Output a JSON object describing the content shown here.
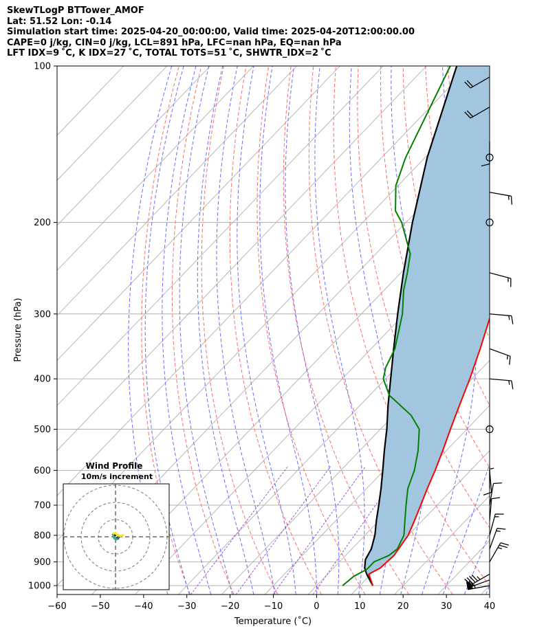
{
  "header": {
    "lines": [
      "SkewTLogP BTTower_AMOF",
      "Lat: 51.52   Lon: -0.14",
      "Simulation start time: 2025-04-20_00:00:00, Valid time: 2025-04-20T12:00:00.00",
      "CAPE=0 j/kg, CIN=0 j/kg, LCL=891 hPa, LFC=nan hPa, EQ=nan hPa",
      "LFT IDX=9 ˚C, K IDX=27 ˚C, TOTAL TOTS=51 ˚C, SHWTR_IDX=2 ˚C"
    ]
  },
  "chart_data": {
    "type": "skewt",
    "xlabel": "Temperature (˚C)",
    "ylabel": "Pressure (hPa)",
    "xlim": [
      -60,
      40
    ],
    "ylim": [
      1040,
      100
    ],
    "x_ticks": [
      -60,
      -50,
      -40,
      -30,
      -20,
      -10,
      0,
      10,
      20,
      30,
      40
    ],
    "y_ticks": [
      100,
      200,
      300,
      400,
      500,
      600,
      700,
      800,
      900,
      1000
    ],
    "grid": true,
    "colors": {
      "temperature": "#ff0000",
      "dewpoint": "#008000",
      "parcel": "#000000",
      "fill": "#a2c6e0",
      "dry_adiabats": "#ff6b6b",
      "moist_adiabats": "#6b6bff",
      "mixing_ratio": "#9b3fd0",
      "isotherms": "#b0b0b0"
    },
    "temperature_profile": [
      {
        "p": 1000,
        "t": 13.0
      },
      {
        "p": 950,
        "t": 9.5
      },
      {
        "p": 925,
        "t": 10.8
      },
      {
        "p": 875,
        "t": 11.2
      },
      {
        "p": 850,
        "t": 10.8
      },
      {
        "p": 800,
        "t": 10.0
      },
      {
        "p": 750,
        "t": 8.2
      },
      {
        "p": 700,
        "t": 6.2
      },
      {
        "p": 650,
        "t": 4.0
      },
      {
        "p": 600,
        "t": 1.8
      },
      {
        "p": 550,
        "t": -0.8
      },
      {
        "p": 500,
        "t": -3.8
      },
      {
        "p": 450,
        "t": -7.0
      },
      {
        "p": 400,
        "t": -10.5
      },
      {
        "p": 350,
        "t": -14.8
      },
      {
        "p": 300,
        "t": -20.0
      },
      {
        "p": 270,
        "t": -24.0
      },
      {
        "p": 250,
        "t": -26.0
      },
      {
        "p": 230,
        "t": -26.0
      },
      {
        "p": 200,
        "t": -24.5
      },
      {
        "p": 185,
        "t": -26.0
      },
      {
        "p": 175,
        "t": -27.8
      },
      {
        "p": 160,
        "t": -31.0
      },
      {
        "p": 145,
        "t": -37.0
      },
      {
        "p": 130,
        "t": -44.5
      },
      {
        "p": 115,
        "t": -52.0
      },
      {
        "p": 100,
        "t": -60.0
      }
    ],
    "dewpoint_profile": [
      {
        "p": 1000,
        "t": 6.0
      },
      {
        "p": 960,
        "t": 6.5
      },
      {
        "p": 930,
        "t": 8.0
      },
      {
        "p": 900,
        "t": 8.0
      },
      {
        "p": 875,
        "t": 10.0
      },
      {
        "p": 850,
        "t": 10.5
      },
      {
        "p": 800,
        "t": 9.0
      },
      {
        "p": 750,
        "t": 6.0
      },
      {
        "p": 700,
        "t": 2.8
      },
      {
        "p": 650,
        "t": -0.5
      },
      {
        "p": 600,
        "t": -3.0
      },
      {
        "p": 550,
        "t": -6.5
      },
      {
        "p": 500,
        "t": -11.0
      },
      {
        "p": 470,
        "t": -16.0
      },
      {
        "p": 430,
        "t": -25.5
      },
      {
        "p": 400,
        "t": -30.5
      },
      {
        "p": 380,
        "t": -32.5
      },
      {
        "p": 350,
        "t": -34.5
      },
      {
        "p": 300,
        "t": -40.5
      },
      {
        "p": 270,
        "t": -45.5
      },
      {
        "p": 250,
        "t": -48.5
      },
      {
        "p": 230,
        "t": -52.0
      },
      {
        "p": 200,
        "t": -61.0
      },
      {
        "p": 190,
        "t": -65.0
      },
      {
        "p": 170,
        "t": -70.5
      },
      {
        "p": 150,
        "t": -74.5
      },
      {
        "p": 120,
        "t": -80.0
      },
      {
        "p": 100,
        "t": -84.5
      }
    ],
    "parcel_profile": [
      {
        "p": 1000,
        "t": 13.0
      },
      {
        "p": 950,
        "t": 9.0
      },
      {
        "p": 925,
        "t": 7.2
      },
      {
        "p": 891,
        "t": 5.5
      },
      {
        "p": 850,
        "t": 4.5
      },
      {
        "p": 800,
        "t": 2.3
      },
      {
        "p": 750,
        "t": -0.6
      },
      {
        "p": 700,
        "t": -3.5
      },
      {
        "p": 650,
        "t": -6.7
      },
      {
        "p": 600,
        "t": -10.3
      },
      {
        "p": 550,
        "t": -14.3
      },
      {
        "p": 500,
        "t": -18.5
      },
      {
        "p": 450,
        "t": -23.5
      },
      {
        "p": 400,
        "t": -28.8
      },
      {
        "p": 350,
        "t": -34.8
      },
      {
        "p": 300,
        "t": -41.6
      },
      {
        "p": 250,
        "t": -49.4
      },
      {
        "p": 200,
        "t": -58.5
      },
      {
        "p": 150,
        "t": -69.5
      },
      {
        "p": 100,
        "t": -83.0
      }
    ],
    "wind_barbs": [
      {
        "p": 1000,
        "speed_kt": 65,
        "dir": 260
      },
      {
        "p": 975,
        "speed_kt": 55,
        "dir": 250
      },
      {
        "p": 950,
        "speed_kt": 45,
        "dir": 240
      },
      {
        "p": 900,
        "speed_kt": 25,
        "dir": 30
      },
      {
        "p": 850,
        "speed_kt": 15,
        "dir": 20
      },
      {
        "p": 800,
        "speed_kt": 15,
        "dir": 15
      },
      {
        "p": 750,
        "speed_kt": 10,
        "dir": 5
      },
      {
        "p": 700,
        "speed_kt": 10,
        "dir": 10
      },
      {
        "p": 650,
        "speed_kt": 5,
        "dir": 360
      },
      {
        "p": 600,
        "speed_kt": 10,
        "dir": 175
      },
      {
        "p": 500,
        "speed_kt": 0,
        "dir": 0
      },
      {
        "p": 400,
        "speed_kt": 15,
        "dir": 95
      },
      {
        "p": 350,
        "speed_kt": 15,
        "dir": 110
      },
      {
        "p": 300,
        "speed_kt": 15,
        "dir": 95
      },
      {
        "p": 250,
        "speed_kt": 15,
        "dir": 105
      },
      {
        "p": 200,
        "speed_kt": 0,
        "dir": 0
      },
      {
        "p": 175,
        "speed_kt": 15,
        "dir": 100
      },
      {
        "p": 150,
        "speed_kt": 0,
        "dir": 0
      },
      {
        "p": 140,
        "speed_kt": 10,
        "dir": 180
      },
      {
        "p": 120,
        "speed_kt": 20,
        "dir": 240
      },
      {
        "p": 105,
        "speed_kt": 20,
        "dir": 240
      }
    ],
    "hodograph": {
      "title": "Wind Profile",
      "subtitle": "10m/s increment",
      "rings_ms": [
        10,
        20,
        30
      ],
      "colormap": [
        "#440154",
        "#31688e",
        "#35b779",
        "#fde725"
      ],
      "points": [
        {
          "u": 1.0,
          "v": -0.5
        },
        {
          "u": 0.5,
          "v": -1.0
        },
        {
          "u": -0.5,
          "v": -1.0
        },
        {
          "u": -1.0,
          "v": -0.2
        },
        {
          "u": -0.8,
          "v": 0.6
        },
        {
          "u": 0.5,
          "v": 1.2
        },
        {
          "u": 1.5,
          "v": 1.0
        },
        {
          "u": 2.0,
          "v": 0.0
        },
        {
          "u": 1.5,
          "v": -1.0
        },
        {
          "u": 0.5,
          "v": -1.5
        },
        {
          "u": -0.5,
          "v": -0.8
        },
        {
          "u": -1.2,
          "v": 0.2
        },
        {
          "u": -1.5,
          "v": 1.2
        },
        {
          "u": -1.0,
          "v": 2.0
        },
        {
          "u": 0.0,
          "v": 2.2
        },
        {
          "u": 1.0,
          "v": 1.0
        },
        {
          "u": 3.0,
          "v": 0.5
        },
        {
          "u": 4.5,
          "v": 1.0
        }
      ]
    }
  }
}
